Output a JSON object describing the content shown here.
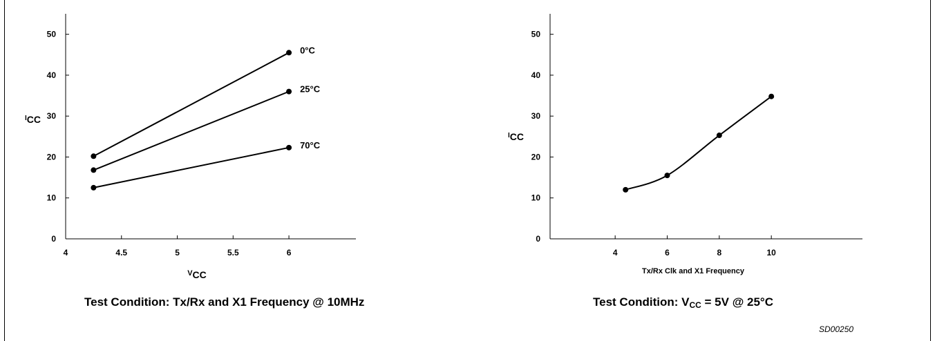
{
  "chart_data": [
    {
      "type": "line",
      "xlabel": "V",
      "xlabel_sub": "CC",
      "ylabel": "I",
      "ylabel_sub": "CC",
      "xlim": [
        4,
        6.6
      ],
      "ylim": [
        0,
        55
      ],
      "x_ticks": [
        4,
        4.5,
        5,
        5.5,
        6
      ],
      "x_tick_labels": [
        "4",
        "4.5",
        "5",
        "5.5",
        "6"
      ],
      "y_ticks": [
        0,
        10,
        20,
        30,
        40,
        50
      ],
      "y_tick_labels": [
        "0",
        "10",
        "20",
        "30",
        "40",
        "50"
      ],
      "series": [
        {
          "name": "0°C",
          "x": [
            4.25,
            6
          ],
          "y": [
            20.2,
            45.5
          ]
        },
        {
          "name": "25°C",
          "x": [
            4.25,
            6
          ],
          "y": [
            16.8,
            36
          ]
        },
        {
          "name": "70°C",
          "x": [
            4.25,
            6
          ],
          "y": [
            12.5,
            22.3
          ]
        }
      ],
      "grid": false,
      "caption": "Test Condition:  Tx/Rx and X1 Frequency @ 10MHz"
    },
    {
      "type": "line",
      "xlabel": "Tx/Rx Clk and X1 Frequency",
      "ylabel": "I",
      "ylabel_sub": "CC",
      "xlim": [
        1.5,
        13.5
      ],
      "ylim": [
        0,
        55
      ],
      "x_ticks": [
        4,
        6,
        8,
        10
      ],
      "x_tick_labels": [
        "4",
        "6",
        "8",
        "10"
      ],
      "y_ticks": [
        0,
        10,
        20,
        30,
        40,
        50
      ],
      "y_tick_labels": [
        "0",
        "10",
        "20",
        "30",
        "40",
        "50"
      ],
      "series": [
        {
          "x": [
            4.4,
            6,
            8,
            10
          ],
          "y": [
            12,
            15.5,
            25.3,
            34.8
          ]
        }
      ],
      "grid": false,
      "caption_prefix": "Test Condition: V",
      "caption_sub": "CC",
      "caption_suffix": " = 5V @ 25°C"
    }
  ],
  "figure_code": "SD00250"
}
